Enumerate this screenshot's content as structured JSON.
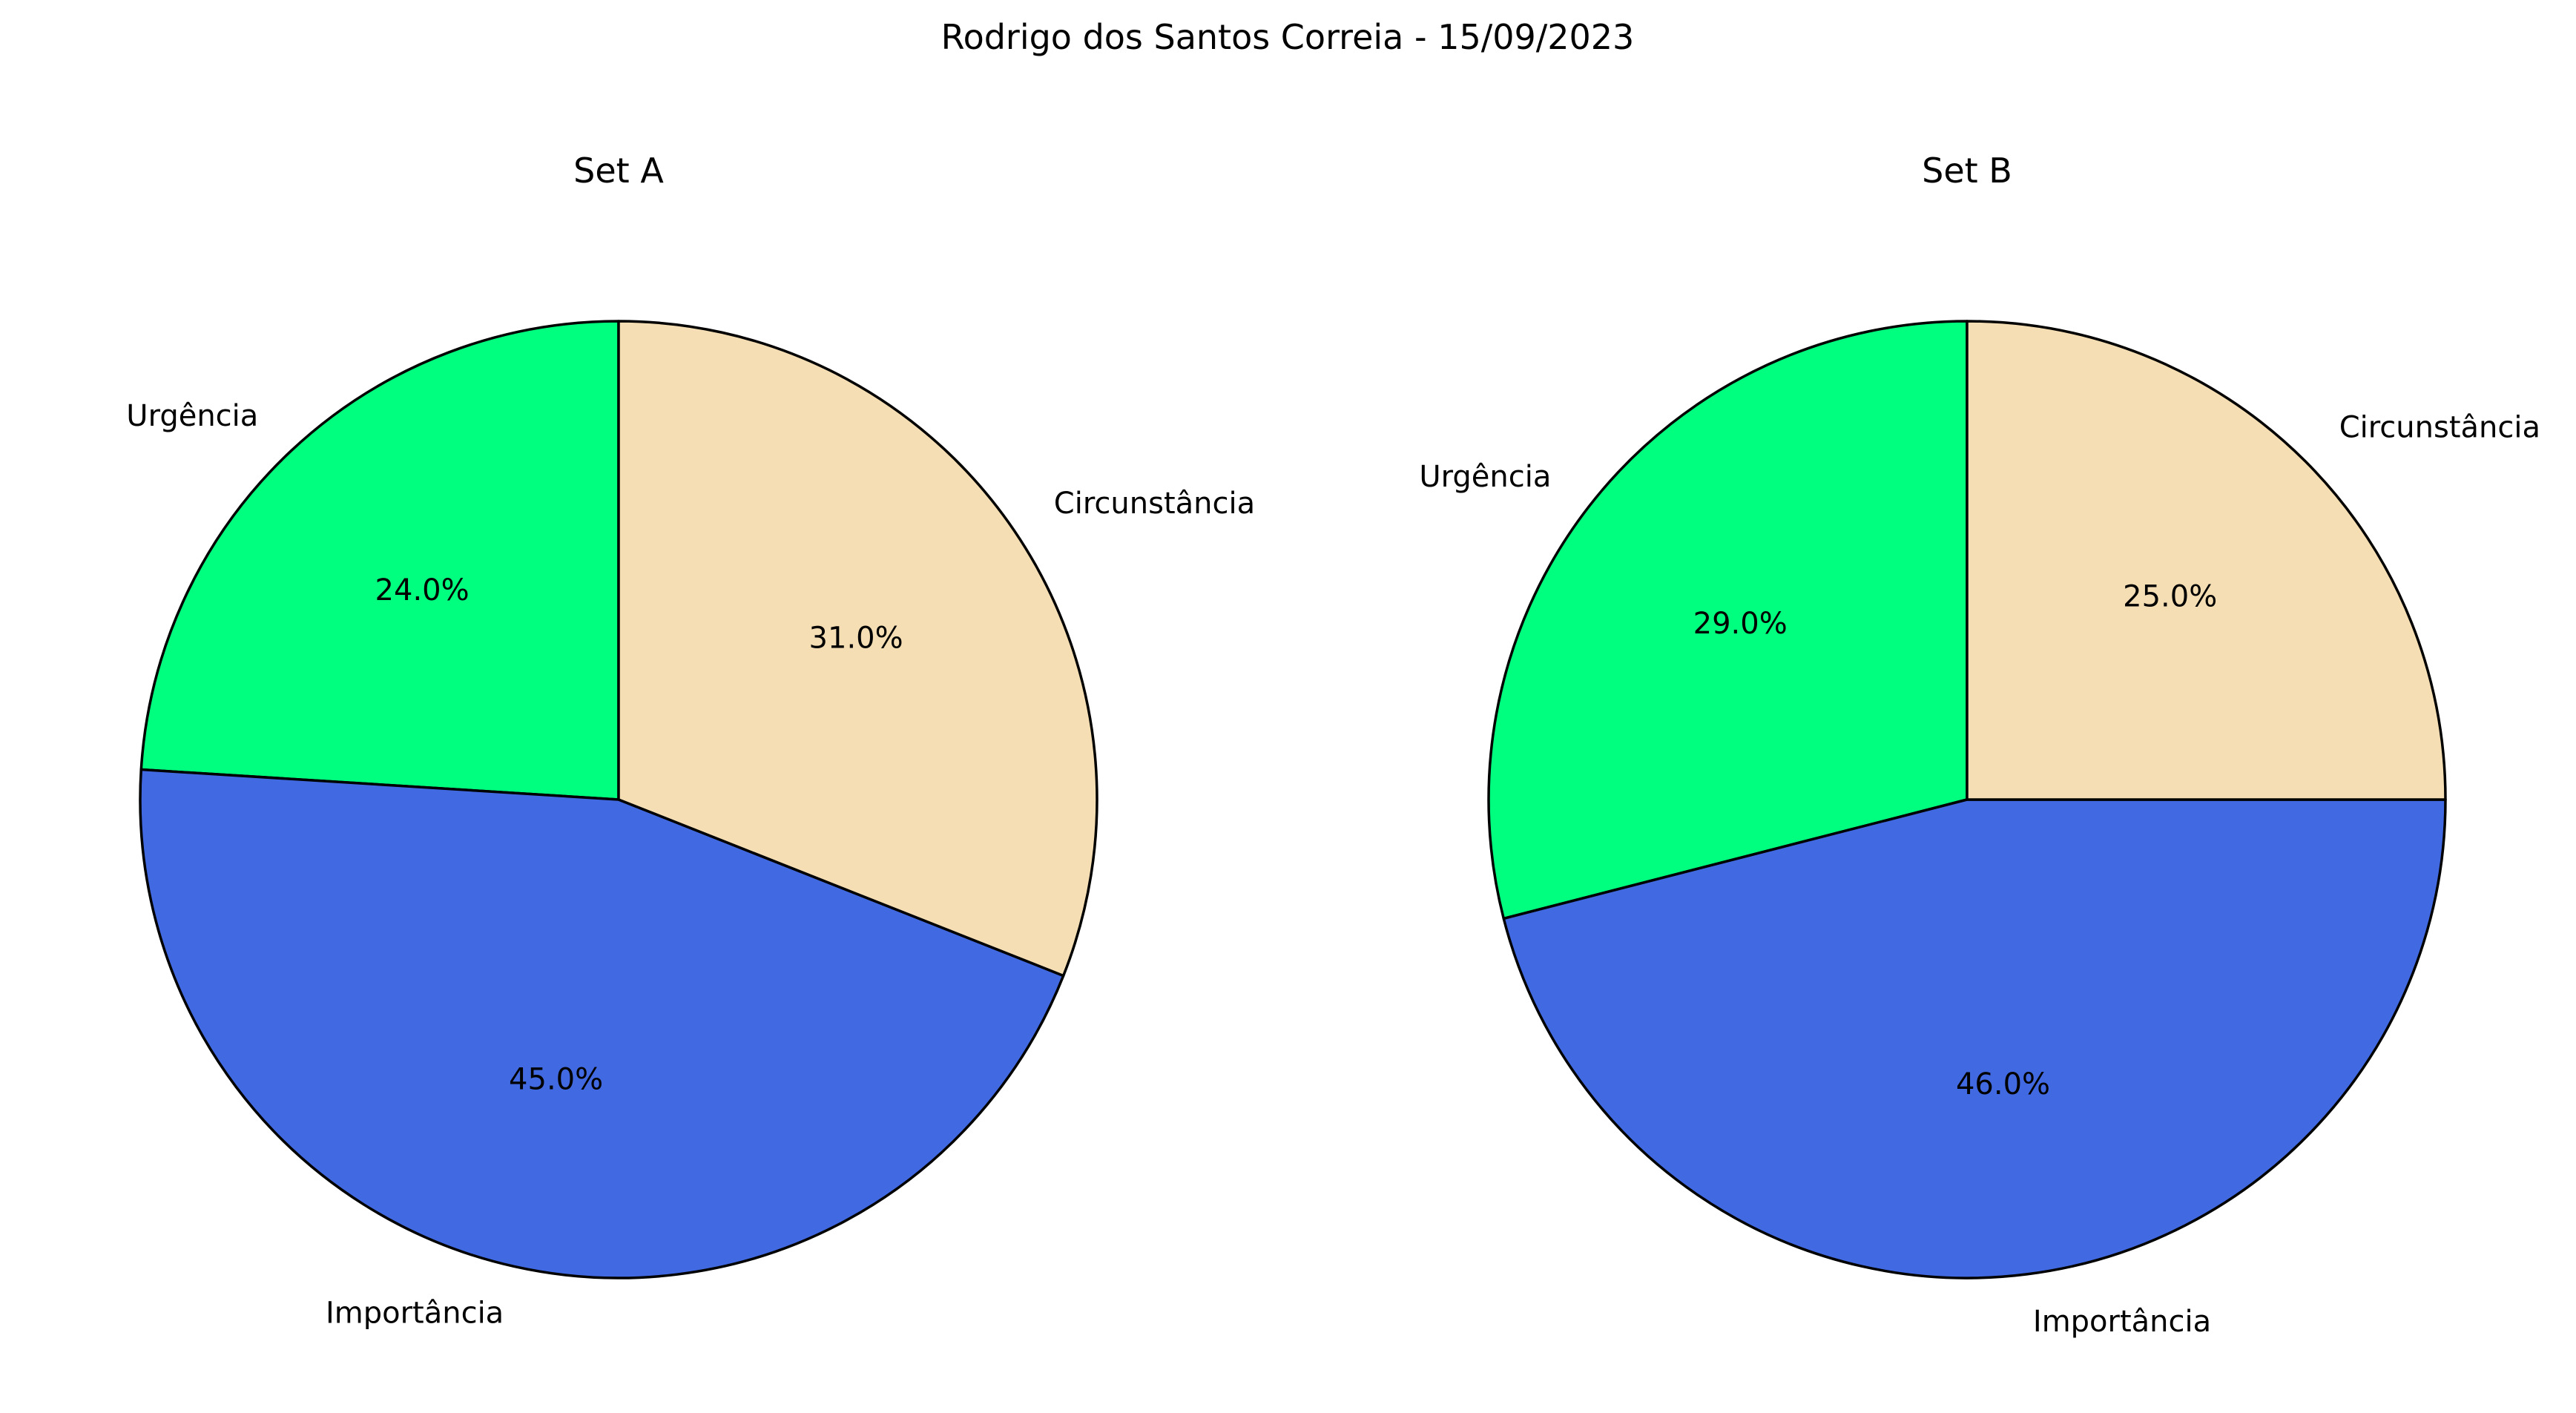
{
  "figure": {
    "title": "Rodrigo dos Santos Correia - 15/09/2023"
  },
  "chart_data": [
    {
      "type": "pie",
      "title": "Set A",
      "labels": [
        "Circunstância",
        "Importância",
        "Urgência"
      ],
      "values": [
        31.0,
        45.0,
        24.0
      ],
      "value_labels": [
        "31.0%",
        "45.0%",
        "24.0%"
      ],
      "colors": [
        "#F5DEB3",
        "#4169E1",
        "#00FF7F"
      ],
      "start_angle_deg": 90,
      "direction": "clockwise",
      "edge_color": "#000000"
    },
    {
      "type": "pie",
      "title": "Set B",
      "labels": [
        "Circunstância",
        "Importância",
        "Urgência"
      ],
      "values": [
        25.0,
        46.0,
        29.0
      ],
      "value_labels": [
        "25.0%",
        "46.0%",
        "29.0%"
      ],
      "colors": [
        "#F5DEB3",
        "#4169E1",
        "#00FF7F"
      ],
      "start_angle_deg": 90,
      "direction": "clockwise",
      "edge_color": "#000000"
    }
  ]
}
